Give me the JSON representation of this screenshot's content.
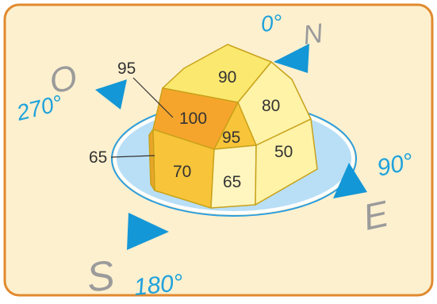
{
  "colors": {
    "frame_border": "#e08a2e",
    "background": "#fdf0cf",
    "ellipse_fill": "#b9dff6",
    "ellipse_stroke": "#2a9ee0",
    "arrow": "#1497d6",
    "face_top": "#fbe86f",
    "face_darkorange": "#f6a52c",
    "face_gold": "#f8c53a",
    "face_light": "#fff3a8",
    "face_pale": "#fff6bf"
  },
  "compass": {
    "north": {
      "letter": "N",
      "degrees": "0°"
    },
    "east": {
      "letter": "E",
      "degrees": "90°"
    },
    "south": {
      "letter": "S",
      "degrees": "180°"
    },
    "west": {
      "letter": "O",
      "degrees": "270°"
    }
  },
  "faces": {
    "top_back": "90",
    "top_left_dark": "100",
    "top_center": "95",
    "right_back": "80",
    "right_front": "50",
    "front_left": "70",
    "front_right": "65"
  },
  "callouts": {
    "upper_left": "95",
    "lower_left": "65"
  }
}
